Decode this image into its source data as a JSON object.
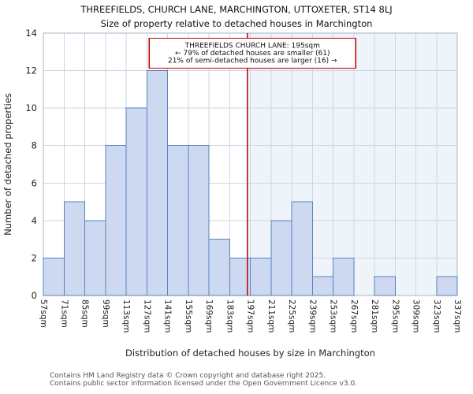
{
  "chart_data": {
    "type": "bar",
    "title": "THREEFIELDS, CHURCH LANE, MARCHINGTON, UTTOXETER, ST14 8LJ",
    "subtitle": "Size of property relative to detached houses in Marchington",
    "xlabel": "Distribution of detached houses by size in Marchington",
    "ylabel": "Number of detached properties",
    "ylim": [
      0,
      14
    ],
    "yticks": [
      0,
      2,
      4,
      6,
      8,
      10,
      12,
      14
    ],
    "grid": true,
    "bin_edge_labels": [
      "57sqm",
      "71sqm",
      "85sqm",
      "99sqm",
      "113sqm",
      "127sqm",
      "141sqm",
      "155sqm",
      "169sqm",
      "183sqm",
      "197sqm",
      "211sqm",
      "225sqm",
      "239sqm",
      "253sqm",
      "267sqm",
      "281sqm",
      "295sqm",
      "309sqm",
      "323sqm",
      "337sqm"
    ],
    "bin_start_sqm": 57,
    "bin_step_sqm": 14,
    "values": [
      2,
      5,
      4,
      8,
      10,
      12,
      8,
      8,
      3,
      2,
      2,
      4,
      5,
      1,
      2,
      0,
      1,
      0,
      0,
      1
    ],
    "marker": {
      "sqm": 195,
      "color": "#bb0000",
      "annotation": [
        "THREEFIELDS CHURCH LANE: 195sqm",
        "← 79% of detached houses are smaller (61)",
        "21% of semi-detached houses are larger (16) →"
      ]
    },
    "colors": {
      "bar_fill": "#ccd9f0",
      "bar_stroke": "#5a82bd",
      "grid": "#ccd6e6",
      "border": "#aab6ca",
      "shade_right": "#dce6f5"
    }
  },
  "footer": {
    "line1": "Contains HM Land Registry data © Crown copyright and database right 2025.",
    "line2": "Contains public sector information licensed under the Open Government Licence v3.0."
  }
}
